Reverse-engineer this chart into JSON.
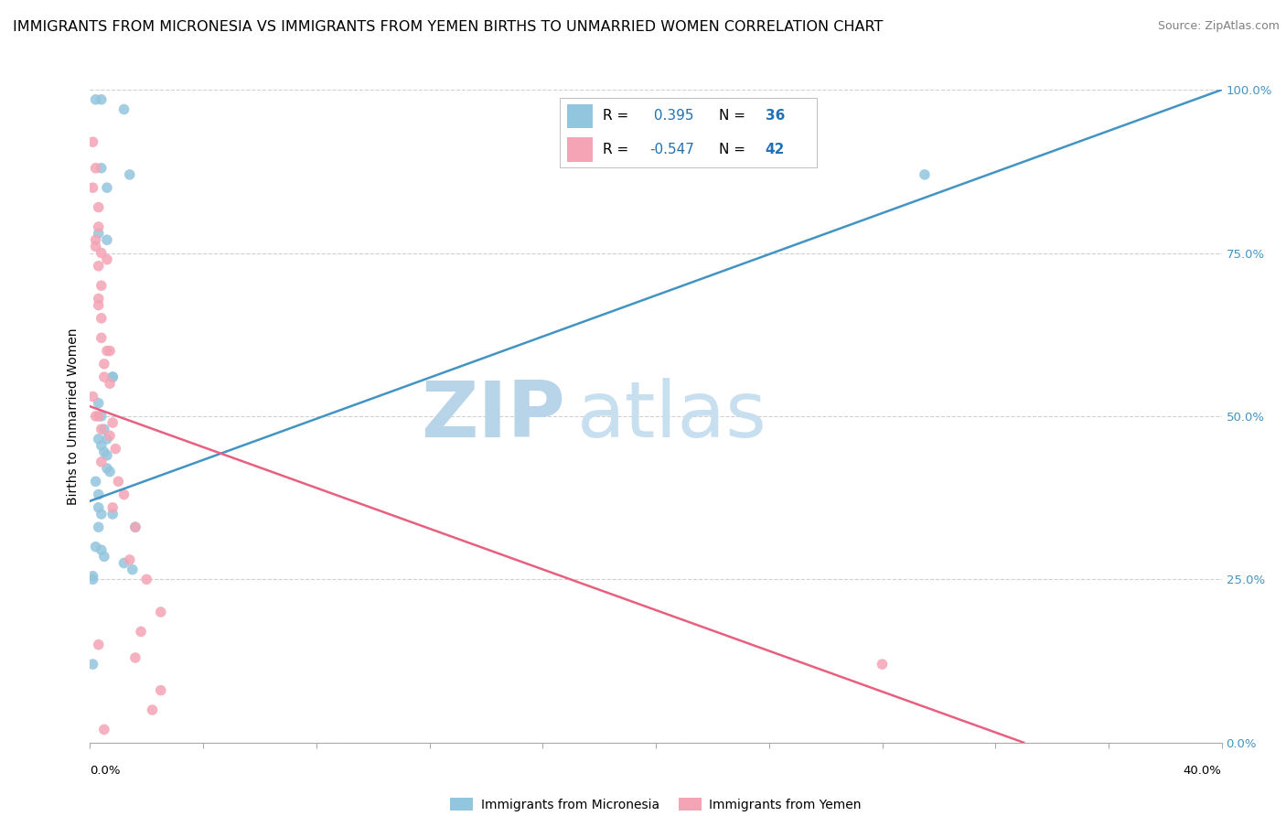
{
  "title": "IMMIGRANTS FROM MICRONESIA VS IMMIGRANTS FROM YEMEN BIRTHS TO UNMARRIED WOMEN CORRELATION CHART",
  "source": "Source: ZipAtlas.com",
  "ylabel": "Births to Unmarried Women",
  "watermark_zip": "ZIP",
  "watermark_atlas": "atlas",
  "legend_blue_r": "R =  0.395",
  "legend_blue_n": "N = 36",
  "legend_pink_r": "R = -0.547",
  "legend_pink_n": "N = 42",
  "blue_scatter_x": [
    0.002,
    0.004,
    0.012,
    0.004,
    0.006,
    0.014,
    0.003,
    0.006,
    0.008,
    0.008,
    0.003,
    0.004,
    0.005,
    0.006,
    0.003,
    0.004,
    0.005,
    0.006,
    0.006,
    0.007,
    0.002,
    0.003,
    0.003,
    0.004,
    0.008,
    0.003,
    0.016,
    0.002,
    0.004,
    0.005,
    0.012,
    0.015,
    0.001,
    0.001,
    0.001,
    0.295
  ],
  "blue_scatter_y": [
    0.985,
    0.985,
    0.97,
    0.88,
    0.85,
    0.87,
    0.78,
    0.77,
    0.56,
    0.56,
    0.52,
    0.5,
    0.48,
    0.465,
    0.465,
    0.455,
    0.445,
    0.44,
    0.42,
    0.415,
    0.4,
    0.38,
    0.36,
    0.35,
    0.35,
    0.33,
    0.33,
    0.3,
    0.295,
    0.285,
    0.275,
    0.265,
    0.255,
    0.25,
    0.12,
    0.87
  ],
  "pink_scatter_x": [
    0.001,
    0.002,
    0.001,
    0.003,
    0.003,
    0.002,
    0.002,
    0.004,
    0.006,
    0.003,
    0.004,
    0.003,
    0.003,
    0.004,
    0.004,
    0.006,
    0.007,
    0.005,
    0.005,
    0.007,
    0.001,
    0.002,
    0.003,
    0.008,
    0.004,
    0.007,
    0.009,
    0.004,
    0.01,
    0.012,
    0.008,
    0.016,
    0.014,
    0.02,
    0.025,
    0.018,
    0.003,
    0.016,
    0.025,
    0.022,
    0.28,
    0.005
  ],
  "pink_scatter_y": [
    0.92,
    0.88,
    0.85,
    0.82,
    0.79,
    0.77,
    0.76,
    0.75,
    0.74,
    0.73,
    0.7,
    0.68,
    0.67,
    0.65,
    0.62,
    0.6,
    0.6,
    0.58,
    0.56,
    0.55,
    0.53,
    0.5,
    0.5,
    0.49,
    0.48,
    0.47,
    0.45,
    0.43,
    0.4,
    0.38,
    0.36,
    0.33,
    0.28,
    0.25,
    0.2,
    0.17,
    0.15,
    0.13,
    0.08,
    0.05,
    0.12,
    0.02
  ],
  "blue_line_x": [
    0.0,
    0.4
  ],
  "blue_line_y": [
    0.37,
    1.0
  ],
  "pink_line_x": [
    0.0,
    0.33
  ],
  "pink_line_y": [
    0.515,
    0.0
  ],
  "blue_color": "#92c5de",
  "pink_color": "#f4a4b4",
  "blue_line_color": "#4393c3",
  "pink_line_color": "#e86080",
  "grid_color": "#d0d0d0",
  "watermark_color": "#c8dff0",
  "background_color": "#ffffff",
  "title_fontsize": 11.5,
  "source_fontsize": 9,
  "axis_label_fontsize": 10,
  "tick_fontsize": 9.5,
  "legend_fontsize": 11,
  "scatter_size": 70,
  "xlim": [
    0.0,
    0.4
  ],
  "ylim": [
    0.0,
    1.0
  ],
  "yticks": [
    0.0,
    0.25,
    0.5,
    0.75,
    1.0
  ],
  "yticklabels": [
    "0.0%",
    "25.0%",
    "50.0%",
    "75.0%",
    "100.0%"
  ]
}
